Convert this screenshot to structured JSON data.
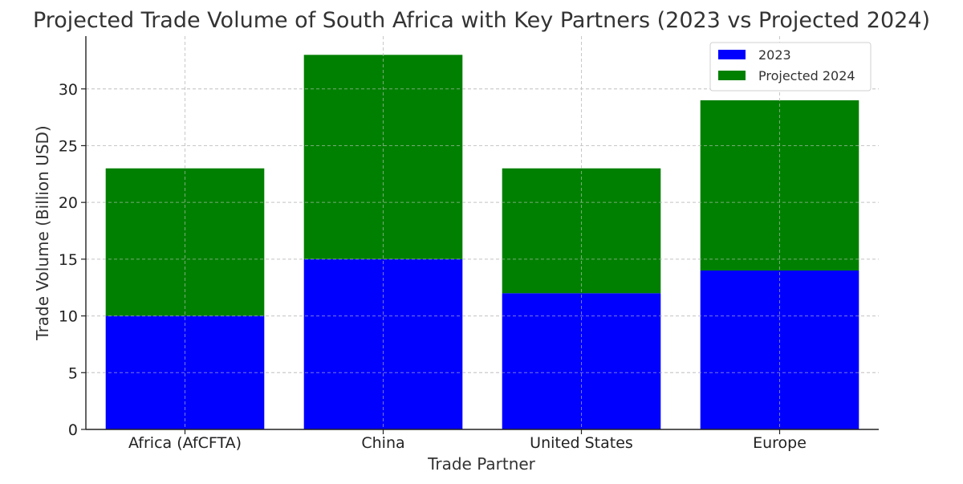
{
  "chart_data": {
    "type": "bar",
    "stacked": true,
    "title": "Projected Trade Volume of South Africa with Key Partners (2023 vs Projected 2024)",
    "xlabel": "Trade Partner",
    "ylabel": "Trade Volume (Billion USD)",
    "categories": [
      "Africa (AfCFTA)",
      "China",
      "United States",
      "Europe"
    ],
    "series": [
      {
        "name": "2023",
        "values": [
          10,
          15,
          12,
          14
        ],
        "color": "#0000ff"
      },
      {
        "name": "Projected 2024",
        "values": [
          13,
          18,
          11,
          15
        ],
        "color": "#008000"
      }
    ],
    "ylim": [
      0,
      34.65
    ],
    "yticks": [
      0,
      5,
      10,
      15,
      20,
      25,
      30
    ],
    "grid": true,
    "legend_position": "top-right"
  }
}
